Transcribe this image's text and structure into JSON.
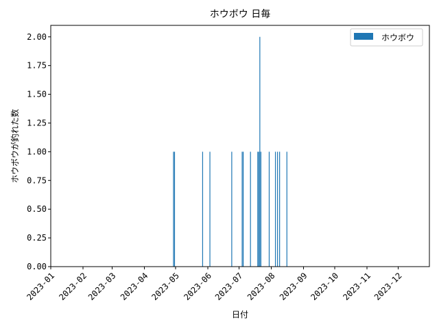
{
  "chart_data": {
    "type": "bar",
    "title": "ホウボウ 日毎",
    "xlabel": "日付",
    "ylabel": "ホウボウが釣れた数",
    "xlim": [
      "2023-01-01",
      "2023-12-31"
    ],
    "ylim": [
      0,
      2.1
    ],
    "x_ticks": [
      "2023-01",
      "2023-02",
      "2023-03",
      "2023-04",
      "2023-05",
      "2023-06",
      "2023-07",
      "2023-08",
      "2023-09",
      "2023-10",
      "2023-11",
      "2023-12"
    ],
    "y_ticks": [
      "0.00",
      "0.25",
      "0.50",
      "0.75",
      "1.00",
      "1.25",
      "1.50",
      "1.75",
      "2.00"
    ],
    "legend": {
      "position": "top-right"
    },
    "series": [
      {
        "name": "ホウボウ",
        "color": "#1f77b4",
        "points": [
          {
            "x": "2023-04-29",
            "y": 1
          },
          {
            "x": "2023-04-30",
            "y": 1
          },
          {
            "x": "2023-05-27",
            "y": 1
          },
          {
            "x": "2023-06-03",
            "y": 1
          },
          {
            "x": "2023-06-24",
            "y": 1
          },
          {
            "x": "2023-07-04",
            "y": 1
          },
          {
            "x": "2023-07-05",
            "y": 1
          },
          {
            "x": "2023-07-12",
            "y": 1
          },
          {
            "x": "2023-07-19",
            "y": 1
          },
          {
            "x": "2023-07-20",
            "y": 1
          },
          {
            "x": "2023-07-21",
            "y": 2
          },
          {
            "x": "2023-07-22",
            "y": 1
          },
          {
            "x": "2023-07-30",
            "y": 1
          },
          {
            "x": "2023-08-05",
            "y": 1
          },
          {
            "x": "2023-08-07",
            "y": 1
          },
          {
            "x": "2023-08-09",
            "y": 1
          },
          {
            "x": "2023-08-16",
            "y": 1
          }
        ]
      }
    ]
  }
}
